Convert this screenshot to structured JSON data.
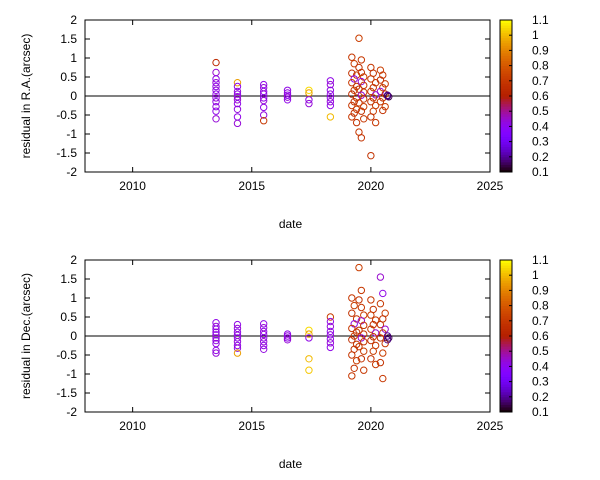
{
  "chart_data": [
    {
      "type": "scatter",
      "xlabel": "date",
      "ylabel": "residual in R.A.(arcsec)",
      "xlim": [
        2008,
        2025
      ],
      "ylim": [
        -2,
        2
      ],
      "xticks": [
        "2010",
        "2015",
        "2020",
        "2025"
      ],
      "yticks": [
        "-2",
        "-1.5",
        "-1",
        "-0.5",
        "0",
        "0.5",
        "1",
        "1.5",
        "2"
      ],
      "colorbar": {
        "min": 0.1,
        "max": 1.1,
        "ticks": [
          "0.1",
          "0.2",
          "0.3",
          "0.4",
          "0.5",
          "0.6",
          "0.7",
          "0.8",
          "0.9",
          "1",
          "1.1"
        ]
      },
      "reference_line_y": 0,
      "points": [
        [
          2013.5,
          0.88,
          0.65
        ],
        [
          2013.5,
          0.62,
          0.45
        ],
        [
          2013.5,
          0.45,
          0.42
        ],
        [
          2013.5,
          0.35,
          0.44
        ],
        [
          2013.5,
          0.25,
          0.42
        ],
        [
          2013.5,
          0.15,
          0.43
        ],
        [
          2013.5,
          0.05,
          0.42
        ],
        [
          2013.5,
          -0.05,
          0.44
        ],
        [
          2013.5,
          -0.15,
          0.42
        ],
        [
          2013.5,
          -0.28,
          0.43
        ],
        [
          2013.5,
          -0.4,
          0.42
        ],
        [
          2013.5,
          -0.6,
          0.44
        ],
        [
          2014.4,
          0.35,
          0.95
        ],
        [
          2014.4,
          0.25,
          0.42
        ],
        [
          2014.4,
          0.12,
          0.44
        ],
        [
          2014.4,
          0.05,
          0.42
        ],
        [
          2014.4,
          -0.02,
          0.43
        ],
        [
          2014.4,
          -0.1,
          0.45
        ],
        [
          2014.4,
          -0.2,
          0.42
        ],
        [
          2014.4,
          -0.35,
          0.43
        ],
        [
          2014.4,
          -0.55,
          0.42
        ],
        [
          2014.4,
          -0.72,
          0.44
        ],
        [
          2015.5,
          0.3,
          0.42
        ],
        [
          2015.5,
          0.22,
          0.44
        ],
        [
          2015.5,
          0.12,
          0.42
        ],
        [
          2015.5,
          0.05,
          0.43
        ],
        [
          2015.5,
          -0.05,
          0.42
        ],
        [
          2015.5,
          -0.12,
          0.44
        ],
        [
          2015.5,
          -0.3,
          0.42
        ],
        [
          2015.5,
          -0.5,
          0.43
        ],
        [
          2015.5,
          -0.65,
          0.7
        ],
        [
          2016.5,
          0.15,
          0.42
        ],
        [
          2016.5,
          0.08,
          0.43
        ],
        [
          2016.5,
          0.02,
          0.42
        ],
        [
          2016.5,
          -0.03,
          0.44
        ],
        [
          2016.5,
          -0.1,
          0.42
        ],
        [
          2017.4,
          0.15,
          1.05
        ],
        [
          2017.4,
          0.08,
          0.95
        ],
        [
          2017.4,
          -0.1,
          0.42
        ],
        [
          2017.4,
          -0.2,
          0.44
        ],
        [
          2018.3,
          0.4,
          0.42
        ],
        [
          2018.3,
          0.3,
          0.44
        ],
        [
          2018.3,
          0.15,
          0.42
        ],
        [
          2018.3,
          0.05,
          0.43
        ],
        [
          2018.3,
          -0.05,
          0.42
        ],
        [
          2018.3,
          -0.15,
          0.44
        ],
        [
          2018.3,
          -0.25,
          0.42
        ],
        [
          2018.3,
          -0.55,
          1.0
        ],
        [
          2019.2,
          1.02,
          0.7
        ],
        [
          2019.3,
          0.85,
          0.72
        ],
        [
          2019.2,
          0.6,
          0.68
        ],
        [
          2019.4,
          0.55,
          0.7
        ],
        [
          2019.3,
          0.45,
          0.42
        ],
        [
          2019.2,
          0.35,
          0.7
        ],
        [
          2019.4,
          0.25,
          0.68
        ],
        [
          2019.3,
          0.15,
          0.72
        ],
        [
          2019.2,
          0.05,
          0.66
        ],
        [
          2019.4,
          -0.05,
          0.7
        ],
        [
          2019.3,
          -0.15,
          0.68
        ],
        [
          2019.2,
          -0.25,
          0.7
        ],
        [
          2019.4,
          -0.35,
          0.72
        ],
        [
          2019.3,
          -0.45,
          0.68
        ],
        [
          2019.2,
          -0.55,
          0.7
        ],
        [
          2019.4,
          -0.7,
          0.68
        ],
        [
          2019.5,
          -0.95,
          0.7
        ],
        [
          2019.6,
          -1.1,
          0.68
        ],
        [
          2019.5,
          1.52,
          0.72
        ],
        [
          2019.6,
          0.95,
          0.7
        ],
        [
          2019.5,
          0.75,
          0.68
        ],
        [
          2019.6,
          0.62,
          0.7
        ],
        [
          2019.7,
          0.5,
          0.72
        ],
        [
          2019.6,
          0.38,
          0.45
        ],
        [
          2019.7,
          0.28,
          0.7
        ],
        [
          2019.5,
          0.18,
          0.68
        ],
        [
          2019.7,
          0.1,
          0.7
        ],
        [
          2019.6,
          0.02,
          0.45
        ],
        [
          2019.7,
          -0.08,
          0.68
        ],
        [
          2019.5,
          -0.18,
          0.7
        ],
        [
          2019.7,
          -0.28,
          0.72
        ],
        [
          2019.6,
          -0.4,
          0.68
        ],
        [
          2019.7,
          -0.6,
          0.7
        ],
        [
          2020.0,
          0.75,
          0.7
        ],
        [
          2020.1,
          0.6,
          0.68
        ],
        [
          2020.0,
          0.45,
          0.72
        ],
        [
          2020.2,
          0.35,
          0.7
        ],
        [
          2020.1,
          0.22,
          0.68
        ],
        [
          2020.0,
          0.12,
          0.7
        ],
        [
          2020.2,
          0.03,
          0.45
        ],
        [
          2020.1,
          -0.05,
          0.7
        ],
        [
          2020.0,
          -0.15,
          0.68
        ],
        [
          2020.2,
          -0.25,
          0.7
        ],
        [
          2020.1,
          -0.4,
          0.72
        ],
        [
          2020.0,
          -0.55,
          0.68
        ],
        [
          2020.2,
          -0.7,
          0.7
        ],
        [
          2020.0,
          -1.57,
          0.68
        ],
        [
          2020.4,
          0.68,
          0.72
        ],
        [
          2020.5,
          0.55,
          0.7
        ],
        [
          2020.4,
          0.42,
          0.68
        ],
        [
          2020.6,
          0.32,
          0.7
        ],
        [
          2020.5,
          0.22,
          0.72
        ],
        [
          2020.4,
          0.12,
          0.45
        ],
        [
          2020.6,
          0.05,
          0.7
        ],
        [
          2020.5,
          -0.05,
          0.68
        ],
        [
          2020.4,
          -0.15,
          0.7
        ],
        [
          2020.6,
          -0.28,
          0.72
        ],
        [
          2020.5,
          -0.38,
          0.68
        ],
        [
          2020.7,
          0.02,
          0.2
        ],
        [
          2020.75,
          -0.02,
          0.15
        ],
        [
          2020.7,
          0.0,
          0.18
        ]
      ]
    },
    {
      "type": "scatter",
      "xlabel": "date",
      "ylabel": "residual in Dec.(arcsec)",
      "xlim": [
        2008,
        2025
      ],
      "ylim": [
        -2,
        2
      ],
      "xticks": [
        "2010",
        "2015",
        "2020",
        "2025"
      ],
      "yticks": [
        "-2",
        "-1.5",
        "-1",
        "-0.5",
        "0",
        "0.5",
        "1",
        "1.5",
        "2"
      ],
      "colorbar": {
        "min": 0.1,
        "max": 1.1,
        "ticks": [
          "0.1",
          "0.2",
          "0.3",
          "0.4",
          "0.5",
          "0.6",
          "0.7",
          "0.8",
          "0.9",
          "1",
          "1.1"
        ]
      },
      "reference_line_y": 0,
      "points": [
        [
          2013.5,
          0.35,
          0.42
        ],
        [
          2013.5,
          0.25,
          0.44
        ],
        [
          2013.5,
          0.18,
          0.42
        ],
        [
          2013.5,
          0.1,
          0.43
        ],
        [
          2013.5,
          0.03,
          0.42
        ],
        [
          2013.5,
          -0.05,
          0.44
        ],
        [
          2013.5,
          -0.12,
          0.42
        ],
        [
          2013.5,
          -0.2,
          0.43
        ],
        [
          2013.5,
          -0.38,
          0.42
        ],
        [
          2013.5,
          -0.45,
          0.44
        ],
        [
          2014.4,
          0.3,
          0.42
        ],
        [
          2014.4,
          0.2,
          0.44
        ],
        [
          2014.4,
          0.1,
          0.42
        ],
        [
          2014.4,
          0.02,
          0.43
        ],
        [
          2014.4,
          -0.05,
          0.42
        ],
        [
          2014.4,
          -0.15,
          0.44
        ],
        [
          2014.4,
          -0.25,
          0.42
        ],
        [
          2014.4,
          -0.32,
          0.43
        ],
        [
          2014.4,
          -0.45,
          0.95
        ],
        [
          2015.5,
          0.32,
          0.42
        ],
        [
          2015.5,
          0.22,
          0.44
        ],
        [
          2015.5,
          0.12,
          0.42
        ],
        [
          2015.5,
          0.04,
          0.43
        ],
        [
          2015.5,
          -0.05,
          0.42
        ],
        [
          2015.5,
          -0.15,
          0.44
        ],
        [
          2015.5,
          -0.25,
          0.42
        ],
        [
          2015.5,
          -0.35,
          0.43
        ],
        [
          2016.5,
          0.05,
          0.42
        ],
        [
          2016.5,
          0.0,
          0.43
        ],
        [
          2016.5,
          -0.05,
          0.42
        ],
        [
          2016.5,
          -0.1,
          0.44
        ],
        [
          2017.4,
          0.15,
          1.05
        ],
        [
          2017.4,
          0.05,
          0.95
        ],
        [
          2017.4,
          -0.05,
          0.42
        ],
        [
          2017.4,
          -0.6,
          1.0
        ],
        [
          2017.4,
          -0.9,
          1.02
        ],
        [
          2018.3,
          0.5,
          0.72
        ],
        [
          2018.3,
          0.38,
          0.42
        ],
        [
          2018.3,
          0.25,
          0.44
        ],
        [
          2018.3,
          0.12,
          0.42
        ],
        [
          2018.3,
          0.03,
          0.43
        ],
        [
          2018.3,
          -0.08,
          0.42
        ],
        [
          2018.3,
          -0.18,
          0.44
        ],
        [
          2018.3,
          -0.3,
          0.42
        ],
        [
          2019.2,
          1.0,
          0.7
        ],
        [
          2019.3,
          0.8,
          0.72
        ],
        [
          2019.2,
          0.6,
          0.68
        ],
        [
          2019.4,
          0.45,
          0.7
        ],
        [
          2019.3,
          0.32,
          0.42
        ],
        [
          2019.2,
          0.2,
          0.7
        ],
        [
          2019.4,
          0.1,
          0.68
        ],
        [
          2019.3,
          0.0,
          0.72
        ],
        [
          2019.2,
          -0.1,
          0.66
        ],
        [
          2019.4,
          -0.22,
          0.7
        ],
        [
          2019.3,
          -0.35,
          0.68
        ],
        [
          2019.2,
          -0.5,
          0.7
        ],
        [
          2019.4,
          -0.65,
          0.72
        ],
        [
          2019.3,
          -0.85,
          0.68
        ],
        [
          2019.2,
          -1.05,
          0.7
        ],
        [
          2019.5,
          1.8,
          0.72
        ],
        [
          2019.6,
          1.2,
          0.7
        ],
        [
          2019.5,
          0.95,
          0.68
        ],
        [
          2019.6,
          0.75,
          0.7
        ],
        [
          2019.7,
          0.55,
          0.72
        ],
        [
          2019.6,
          0.4,
          0.45
        ],
        [
          2019.7,
          0.28,
          0.7
        ],
        [
          2019.5,
          0.15,
          0.68
        ],
        [
          2019.7,
          0.05,
          0.7
        ],
        [
          2019.6,
          -0.05,
          0.45
        ],
        [
          2019.7,
          -0.15,
          0.68
        ],
        [
          2019.5,
          -0.28,
          0.7
        ],
        [
          2019.7,
          -0.4,
          0.72
        ],
        [
          2019.6,
          -0.6,
          0.68
        ],
        [
          2019.7,
          -0.9,
          0.7
        ],
        [
          2020.0,
          0.95,
          0.7
        ],
        [
          2020.1,
          0.7,
          0.68
        ],
        [
          2020.0,
          0.55,
          0.72
        ],
        [
          2020.2,
          0.42,
          0.7
        ],
        [
          2020.1,
          0.3,
          0.68
        ],
        [
          2020.0,
          0.18,
          0.7
        ],
        [
          2020.2,
          0.08,
          0.45
        ],
        [
          2020.1,
          -0.02,
          0.7
        ],
        [
          2020.0,
          -0.12,
          0.68
        ],
        [
          2020.2,
          -0.25,
          0.7
        ],
        [
          2020.1,
          -0.4,
          0.72
        ],
        [
          2020.0,
          -0.6,
          0.68
        ],
        [
          2020.2,
          -0.75,
          0.7
        ],
        [
          2020.4,
          1.55,
          0.45
        ],
        [
          2020.5,
          1.12,
          0.42
        ],
        [
          2020.4,
          0.85,
          0.7
        ],
        [
          2020.6,
          0.6,
          0.72
        ],
        [
          2020.5,
          0.45,
          0.68
        ],
        [
          2020.4,
          0.3,
          0.7
        ],
        [
          2020.6,
          0.18,
          0.45
        ],
        [
          2020.5,
          0.08,
          0.7
        ],
        [
          2020.4,
          -0.05,
          0.68
        ],
        [
          2020.6,
          -0.2,
          0.7
        ],
        [
          2020.5,
          -0.45,
          0.72
        ],
        [
          2020.4,
          -0.7,
          0.68
        ],
        [
          2020.5,
          -1.12,
          0.7
        ],
        [
          2020.7,
          0.0,
          0.2
        ],
        [
          2020.75,
          -0.05,
          0.15
        ],
        [
          2020.7,
          -0.1,
          0.18
        ]
      ]
    }
  ]
}
